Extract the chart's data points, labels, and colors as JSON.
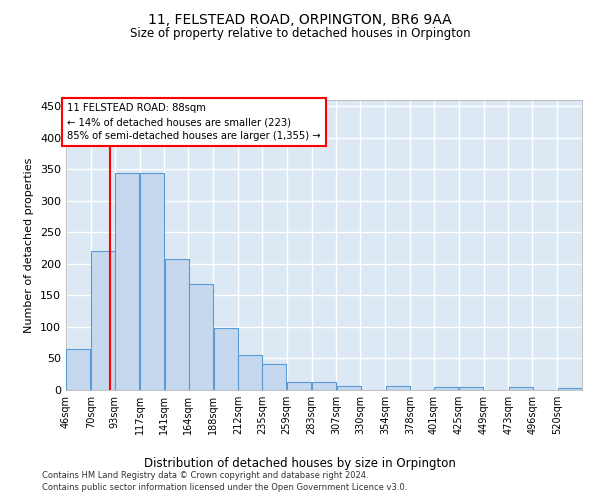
{
  "title": "11, FELSTEAD ROAD, ORPINGTON, BR6 9AA",
  "subtitle": "Size of property relative to detached houses in Orpington",
  "xlabel": "Distribution of detached houses by size in Orpington",
  "ylabel": "Number of detached properties",
  "bar_color": "#c5d8ed",
  "bar_edge_color": "#5b9bd5",
  "bg_color": "#dce9f5",
  "grid_color": "#ffffff",
  "red_line_x": 88,
  "annotation_title": "11 FELSTEAD ROAD: 88sqm",
  "annotation_line1": "← 14% of detached houses are smaller (223)",
  "annotation_line2": "85% of semi-detached houses are larger (1,355) →",
  "bins": [
    46,
    70,
    93,
    117,
    141,
    164,
    188,
    212,
    235,
    259,
    283,
    307,
    330,
    354,
    378,
    401,
    425,
    449,
    473,
    496,
    520
  ],
  "values": [
    65,
    221,
    344,
    344,
    208,
    168,
    98,
    56,
    42,
    13,
    13,
    7,
    0,
    7,
    0,
    5,
    4,
    0,
    5,
    0,
    3
  ],
  "ylim": [
    0,
    460
  ],
  "yticks": [
    0,
    50,
    100,
    150,
    200,
    250,
    300,
    350,
    400,
    450
  ],
  "footnote1": "Contains HM Land Registry data © Crown copyright and database right 2024.",
  "footnote2": "Contains public sector information licensed under the Open Government Licence v3.0."
}
